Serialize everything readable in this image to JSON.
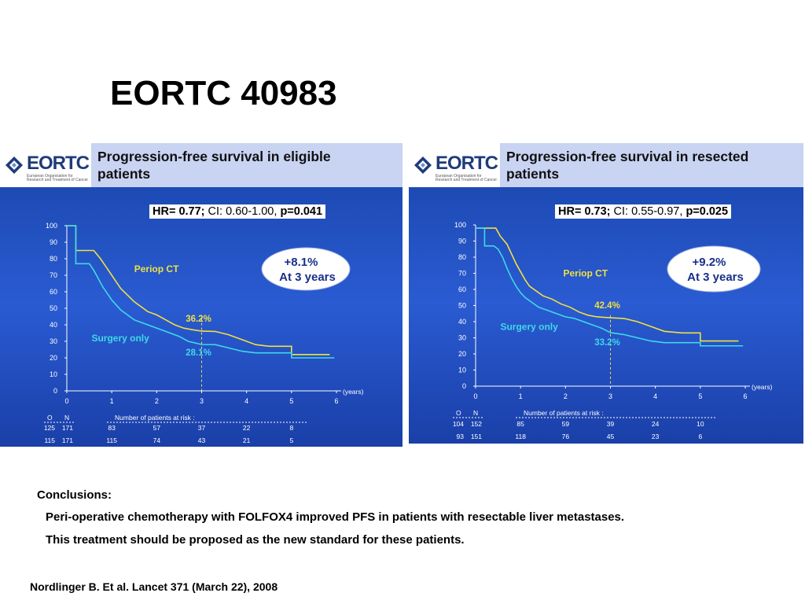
{
  "slide_title": "EORTC 40983",
  "logo_text": "EORTC",
  "logo_subtitle": "European Organisation for Research and Treatment of Cancer",
  "conclusions": {
    "heading": "Conclusions:",
    "lines": [
      "Peri-operative chemotherapy with FOLFOX4 improved PFS in patients with resectable liver metastases.",
      "This treatment should be proposed as the new standard for these patients."
    ]
  },
  "reference": "Nordlinger B.  Et al. Lancet 371 (March 22), 2008",
  "colors": {
    "periop_ct": "#f0e040",
    "surgery_only": "#3fd8e8",
    "panel_header": "#c9d3f2",
    "plot_background": "#2352c4"
  },
  "chart_data": [
    {
      "type": "line",
      "title_line1": "Progression-free survival in eligible",
      "title_line2": "patients",
      "hr_label": "HR=",
      "hr_value": "0.77;",
      "ci": "CI: 0.60-1.00,",
      "p": "p=0.041",
      "callout_line1": "+8.1%",
      "callout_line2": "At 3 years",
      "xlabel": "(years)",
      "xlim": [
        0,
        6
      ],
      "ylim": [
        0,
        100
      ],
      "xticks": [
        "0",
        "1",
        "2",
        "3",
        "4",
        "5",
        "6"
      ],
      "yticks": [
        "0",
        "10",
        "20",
        "30",
        "40",
        "50",
        "60",
        "70",
        "80",
        "90",
        "100"
      ],
      "series": [
        {
          "name": "Periop CT",
          "label_at_3": "36.2%",
          "x": [
            0,
            0.2,
            0.2,
            0.6,
            0.75,
            0.9,
            1.0,
            1.1,
            1.2,
            1.35,
            1.5,
            1.65,
            1.8,
            2.0,
            2.2,
            2.4,
            2.6,
            2.8,
            3.0,
            3.3,
            3.6,
            3.9,
            4.2,
            4.5,
            5.0,
            5.0,
            5.85
          ],
          "y": [
            100,
            100,
            85,
            85,
            80,
            74,
            70,
            66,
            62,
            58,
            54,
            51,
            48,
            46,
            43,
            40,
            38,
            37,
            36.2,
            36,
            34,
            31,
            28,
            27,
            27,
            22,
            22
          ]
        },
        {
          "name": "Surgery only",
          "label_at_3": "28.1%",
          "x": [
            0,
            0.2,
            0.2,
            0.5,
            0.6,
            0.7,
            0.8,
            0.9,
            1.0,
            1.1,
            1.2,
            1.35,
            1.5,
            1.7,
            1.9,
            2.1,
            2.3,
            2.5,
            2.7,
            3.0,
            3.3,
            3.6,
            3.9,
            4.2,
            4.6,
            5.0,
            5.0,
            5.95
          ],
          "y": [
            100,
            100,
            77,
            77,
            73,
            68,
            63,
            59,
            55,
            52,
            49,
            46,
            43,
            41,
            39,
            37,
            35,
            33,
            30,
            28.1,
            28,
            26,
            24,
            23,
            23,
            23,
            20,
            20
          ]
        }
      ],
      "risk_table": {
        "col_o": "O",
        "col_n": "N",
        "header": "Number of patients at risk :",
        "rows": [
          {
            "o": "125",
            "n": "171",
            "values": [
              "83",
              "57",
              "37",
              "22",
              "8"
            ]
          },
          {
            "o": "115",
            "n": "171",
            "values": [
              "115",
              "74",
              "43",
              "21",
              "5"
            ]
          }
        ]
      }
    },
    {
      "type": "line",
      "title_line1": "Progression-free survival in resected",
      "title_line2": "patients",
      "hr_label": "HR=",
      "hr_value": "0.73;",
      "ci": "CI: 0.55-0.97,",
      "p": "p=0.025",
      "callout_line1": "+9.2%",
      "callout_line2": "At 3 years",
      "xlabel": "(years)",
      "xlim": [
        0,
        6
      ],
      "ylim": [
        0,
        100
      ],
      "xticks": [
        "0",
        "1",
        "2",
        "3",
        "4",
        "5",
        "6"
      ],
      "yticks": [
        "0",
        "10",
        "20",
        "30",
        "40",
        "50",
        "60",
        "70",
        "80",
        "90",
        "100"
      ],
      "series": [
        {
          "name": "Periop CT",
          "label_at_3": "42.4%",
          "x": [
            0,
            0.45,
            0.55,
            0.7,
            0.8,
            0.9,
            1.0,
            1.1,
            1.2,
            1.35,
            1.5,
            1.7,
            1.9,
            2.1,
            2.3,
            2.5,
            2.7,
            3.0,
            3.3,
            3.6,
            3.9,
            4.2,
            4.6,
            5.0,
            5.0,
            5.85
          ],
          "y": [
            98,
            98,
            93,
            88,
            82,
            76,
            71,
            66,
            62,
            59,
            56,
            54,
            51,
            49,
            46,
            44,
            43,
            42.4,
            42,
            40,
            37,
            34,
            33,
            33,
            28,
            28
          ]
        },
        {
          "name": "Surgery only",
          "label_at_3": "33.2%",
          "x": [
            0,
            0.2,
            0.2,
            0.4,
            0.5,
            0.6,
            0.7,
            0.8,
            0.9,
            1.0,
            1.1,
            1.25,
            1.4,
            1.6,
            1.8,
            2.0,
            2.2,
            2.4,
            2.6,
            2.8,
            3.0,
            3.3,
            3.6,
            3.9,
            4.2,
            4.6,
            5.0,
            5.0,
            5.95
          ],
          "y": [
            98,
            98,
            87,
            87,
            85,
            80,
            73,
            67,
            62,
            58,
            55,
            52,
            49,
            47,
            45,
            43,
            42,
            40,
            38,
            36,
            33.2,
            32,
            30,
            28,
            27,
            27,
            27,
            25,
            25
          ]
        }
      ],
      "risk_table": {
        "col_o": "O",
        "col_n": "N",
        "header": "Number of patients at risk :",
        "rows": [
          {
            "o": "104",
            "n": "152",
            "values": [
              "85",
              "59",
              "39",
              "24",
              "10"
            ]
          },
          {
            "o": "93",
            "n": "151",
            "values": [
              "118",
              "76",
              "45",
              "23",
              "6"
            ]
          }
        ]
      }
    }
  ]
}
